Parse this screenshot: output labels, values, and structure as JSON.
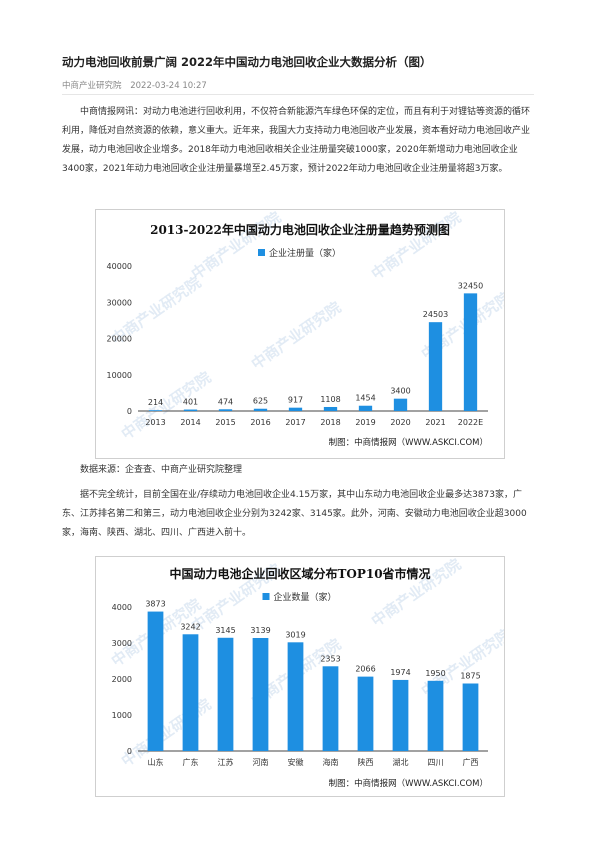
{
  "article": {
    "title": "动力电池回收前景广阔 2022年中国动力电池回收企业大数据分析（图）",
    "source": "中商产业研究院",
    "date": "2022-03-24 10:27",
    "paragraph1": "中商情报网讯：对动力电池进行回收利用，不仅符合新能源汽车绿色环保的定位，而且有利于对锂钴等资源的循环利用，降低对自然资源的依赖，意义重大。近年来，我国大力支持动力电池回收产业发展，资本看好动力电池回收产业发展，动力电池回收企业增多。2018年动力电池回收相关企业注册量突破1000家，2020年新增动力电池回收企业3400家，2021年动力电池回收企业注册量暴增至2.45万家，预计2022年动力电池回收企业注册量将超3万家。",
    "data_source": "数据来源：企查查、中商产业研究院整理",
    "paragraph2": "据不完全统计，目前全国在业/存续动力电池回收企业4.15万家，其中山东动力电池回收企业最多达3873家，广东、江苏排名第二和第三，动力电池回收企业分别为3242家、3145家。此外，河南、安徽动力电池回收企业超3000家，海南、陕西、湖北、四川、广西进入前十。"
  },
  "watermark": "中商产业研究院",
  "colors": {
    "bar": "#1e8fe1",
    "axis": "#444444"
  },
  "chart_data": [
    {
      "type": "bar",
      "title": "2013-2022年中国动力电池回收企业注册量趋势预测图",
      "legend": "企业注册量（家）",
      "legend_position": "top",
      "categories": [
        "2013",
        "2014",
        "2015",
        "2016",
        "2017",
        "2018",
        "2019",
        "2020",
        "2021",
        "2022E"
      ],
      "values": [
        214,
        401,
        474,
        625,
        917,
        1108,
        1454,
        3400,
        24503,
        32450
      ],
      "value_labels": [
        "214",
        "401",
        "474",
        "625",
        "917",
        "1108",
        "1454",
        "3400",
        "24503",
        "32450"
      ],
      "yticks": [
        "0",
        "10000",
        "20000",
        "30000",
        "40000"
      ],
      "ylim": [
        0,
        40000
      ],
      "credit": "制图：中商情报网（WWW.ASKCI.COM）",
      "grid": false
    },
    {
      "type": "bar",
      "title": "中国动力电池企业回收区域分布TOP10省市情况",
      "legend": "企业数量（家）",
      "legend_position": "top",
      "categories": [
        "山东",
        "广东",
        "江苏",
        "河南",
        "安徽",
        "海南",
        "陕西",
        "湖北",
        "四川",
        "广西"
      ],
      "values": [
        3873,
        3242,
        3145,
        3139,
        3019,
        2353,
        2066,
        1974,
        1950,
        1875
      ],
      "value_labels": [
        "3873",
        "3242",
        "3145",
        "3139",
        "3019",
        "2353",
        "2066",
        "1974",
        "1950",
        "1875"
      ],
      "yticks": [
        "0",
        "1000",
        "2000",
        "3000",
        "4000"
      ],
      "ylim": [
        0,
        4000
      ],
      "credit": "制图：中商情报网（WWW.ASKCI.COM）",
      "grid": false
    }
  ]
}
